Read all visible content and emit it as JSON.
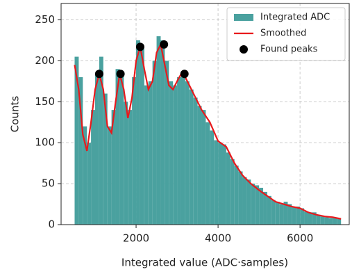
{
  "chart_data": {
    "type": "histogram",
    "xlabel": "Integrated value (ADC·samples)",
    "ylabel": "Counts",
    "xlim": [
      170,
      7200
    ],
    "ylim": [
      0,
      270
    ],
    "xticks": [
      2000,
      4000,
      6000
    ],
    "yticks": [
      0,
      50,
      100,
      150,
      200,
      250
    ],
    "grid": true,
    "legend": "upper right",
    "bins": [
      500,
      600,
      700,
      800,
      900,
      1000,
      1100,
      1200,
      1300,
      1400,
      1500,
      1600,
      1700,
      1800,
      1900,
      2000,
      2100,
      2200,
      2300,
      2400,
      2500,
      2600,
      2700,
      2800,
      2900,
      3000,
      3100,
      3200,
      3300,
      3400,
      3500,
      3600,
      3700,
      3800,
      3900,
      4000,
      4100,
      4200,
      4300,
      4400,
      4500,
      4600,
      4700,
      4800,
      4900,
      5000,
      5100,
      5200,
      5300,
      5400,
      5500,
      5600,
      5700,
      5800,
      5900,
      6000,
      6100,
      6200,
      6300,
      6400,
      6500,
      6600,
      6700,
      6800,
      6900,
      7000
    ],
    "series": [
      {
        "name": "Integrated ADC",
        "type": "histogram",
        "color": "#4aa19f",
        "values": [
          205,
          180,
          120,
          100,
          140,
          185,
          205,
          160,
          120,
          140,
          190,
          185,
          150,
          140,
          180,
          225,
          215,
          170,
          175,
          200,
          230,
          225,
          200,
          175,
          170,
          180,
          185,
          175,
          165,
          155,
          145,
          140,
          125,
          115,
          103,
          100,
          98,
          88,
          80,
          72,
          65,
          58,
          55,
          50,
          48,
          45,
          40,
          35,
          30,
          28,
          25,
          28,
          25,
          22,
          22,
          20,
          16,
          15,
          15,
          12,
          10,
          9,
          8,
          8,
          7
        ]
      },
      {
        "name": "Smoothed",
        "type": "line",
        "color": "#e8191c",
        "x": [
          500,
          600,
          700,
          800,
          900,
          1000,
          1100,
          1200,
          1300,
          1400,
          1500,
          1600,
          1700,
          1800,
          1900,
          2000,
          2100,
          2200,
          2300,
          2400,
          2500,
          2600,
          2700,
          2800,
          2900,
          3000,
          3100,
          3200,
          3400,
          3600,
          3800,
          4000,
          4200,
          4400,
          4600,
          4800,
          5000,
          5200,
          5400,
          5600,
          5800,
          6000,
          6200,
          6400,
          6600,
          6800,
          7000
        ],
        "values": [
          195,
          165,
          110,
          90,
          125,
          165,
          184,
          165,
          120,
          112,
          150,
          184,
          165,
          130,
          155,
          200,
          217,
          190,
          165,
          175,
          210,
          220,
          195,
          170,
          165,
          175,
          184,
          180,
          160,
          140,
          125,
          102,
          95,
          75,
          60,
          50,
          42,
          35,
          28,
          25,
          22,
          20,
          15,
          12,
          10,
          9,
          7
        ]
      },
      {
        "name": "Found peaks",
        "type": "scatter",
        "color": "#000000",
        "x": [
          1100,
          1620,
          2100,
          2680,
          3180
        ],
        "values": [
          184,
          184,
          217,
          220,
          184
        ]
      }
    ]
  }
}
